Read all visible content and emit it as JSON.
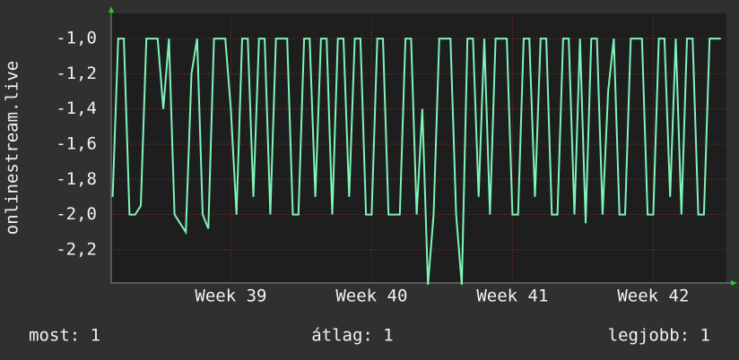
{
  "chart_data": {
    "type": "line",
    "ylabel": "onlinestream.live",
    "x": [
      38.16,
      38.2,
      38.24,
      38.28,
      38.32,
      38.36,
      38.4,
      38.44,
      38.48,
      38.52,
      38.56,
      38.6,
      38.64,
      38.68,
      38.72,
      38.76,
      38.8,
      38.84,
      38.88,
      38.92,
      38.96,
      39.0,
      39.04,
      39.08,
      39.12,
      39.16,
      39.2,
      39.24,
      39.28,
      39.32,
      39.36,
      39.4,
      39.44,
      39.48,
      39.52,
      39.56,
      39.6,
      39.64,
      39.68,
      39.72,
      39.76,
      39.8,
      39.84,
      39.88,
      39.92,
      39.96,
      40.0,
      40.04,
      40.08,
      40.12,
      40.16,
      40.2,
      40.24,
      40.28,
      40.32,
      40.36,
      40.4,
      40.44,
      40.48,
      40.52,
      40.56,
      40.6,
      40.64,
      40.68,
      40.72,
      40.76,
      40.8,
      40.84,
      40.88,
      40.92,
      40.96,
      41.0,
      41.04,
      41.08,
      41.12,
      41.16,
      41.2,
      41.24,
      41.28,
      41.32,
      41.36,
      41.4,
      41.44,
      41.48,
      41.52,
      41.56,
      41.6,
      41.64,
      41.68,
      41.72,
      41.76,
      41.8,
      41.84,
      41.88,
      41.92,
      41.96,
      42.0,
      42.04,
      42.08,
      42.12,
      42.16,
      42.2,
      42.24,
      42.28,
      42.32,
      42.36,
      42.4,
      42.44,
      42.48
    ],
    "series": [
      {
        "color": "#7df5b8",
        "values": [
          -1.9,
          -1,
          -1,
          -2,
          -2,
          -1.95,
          -1,
          -1,
          -1,
          -1.4,
          -1,
          -2,
          -2.05,
          -2.1,
          -1.2,
          -1,
          -2,
          -2.08,
          -1,
          -1,
          -1,
          -1.4,
          -2,
          -1,
          -1,
          -1.9,
          -1,
          -1,
          -2,
          -1,
          -1,
          -1,
          -2,
          -2,
          -1,
          -1,
          -1.9,
          -1,
          -1,
          -2,
          -1,
          -1,
          -1.9,
          -1,
          -1,
          -2,
          -2,
          -1,
          -1,
          -2,
          -2,
          -2,
          -1,
          -1,
          -2,
          -1.4,
          -2.4,
          -2,
          -1,
          -1,
          -1,
          -2,
          -2.4,
          -1,
          -1,
          -1.9,
          -1,
          -2,
          -1,
          -1,
          -1,
          -2,
          -2,
          -1,
          -1,
          -1.9,
          -1,
          -1,
          -2,
          -2,
          -1,
          -1,
          -2,
          -1,
          -2.05,
          -1,
          -1,
          -2,
          -1.3,
          -1,
          -2,
          -2,
          -1,
          -1,
          -1,
          -2,
          -2,
          -1,
          -1,
          -1.9,
          -1,
          -2,
          -1,
          -1,
          -2,
          -2,
          -1,
          -1,
          -1
        ]
      }
    ],
    "xlim": [
      38.15,
      42.52
    ],
    "xticks": [
      {
        "value": 39,
        "label": "Week 39"
      },
      {
        "value": 40,
        "label": "Week 40"
      },
      {
        "value": 41,
        "label": "Week 41"
      },
      {
        "value": 42,
        "label": "Week 42"
      }
    ],
    "ylim": [
      -2.384,
      -0.857
    ],
    "yticks": [
      {
        "value": -1,
        "label": "-1,0"
      },
      {
        "value": -1.2,
        "label": "-1,2"
      },
      {
        "value": -1.4,
        "label": "-1,4"
      },
      {
        "value": -1.6,
        "label": "-1,6"
      },
      {
        "value": -1.8,
        "label": "-1,8"
      },
      {
        "value": -2,
        "label": "-2,0"
      },
      {
        "value": -2.2,
        "label": "-2,2"
      }
    ],
    "grid": true,
    "stats": [
      "most: 1",
      "átlag: 1",
      "legjobb: 1"
    ]
  }
}
